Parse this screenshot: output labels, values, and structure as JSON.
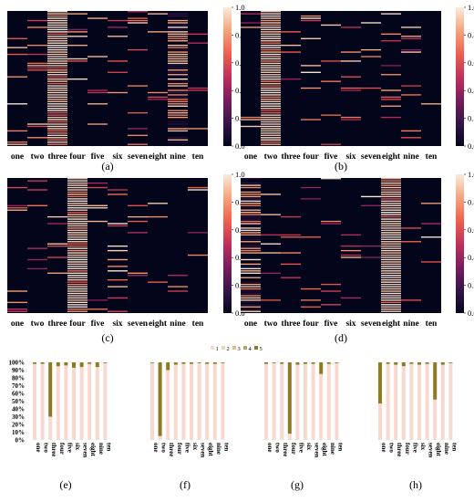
{
  "figure": {
    "colormap": [
      "#03051a",
      "#36154a",
      "#7a1d5e",
      "#c32f5a",
      "#f0604d",
      "#f6a47b",
      "#faebdd"
    ],
    "heatmap_colorbar_ticks": [
      "0.0",
      "0.2",
      "0.4",
      "0.6",
      "0.8",
      "1.0"
    ],
    "stack_legend": [
      "1",
      "2",
      "3",
      "4",
      "5"
    ],
    "stack_colors": [
      "#f7d9d2",
      "#ead4b8",
      "#d8c58c",
      "#b8a55a",
      "#8f7a22"
    ],
    "stack_yticks": [
      "0%",
      "10%",
      "20%",
      "30%",
      "40%",
      "50%",
      "60%",
      "70%",
      "80%",
      "90%",
      "100%"
    ]
  },
  "chart_data": [
    {
      "type": "heatmap",
      "panel": "(a)",
      "categories": [
        "one",
        "two",
        "three",
        "four",
        "five",
        "six",
        "seven",
        "eight",
        "nine",
        "ten"
      ],
      "column_intensity": [
        0.1,
        0.12,
        0.95,
        0.12,
        0.12,
        0.15,
        0.12,
        0.12,
        0.55,
        0.08
      ],
      "colorbar_range": [
        0.0,
        1.0
      ]
    },
    {
      "type": "heatmap",
      "panel": "(b)",
      "categories": [
        "one",
        "two",
        "three",
        "four",
        "five",
        "six",
        "seven",
        "eight",
        "nine",
        "ten"
      ],
      "column_intensity": [
        0.12,
        1.0,
        0.06,
        0.08,
        0.08,
        0.14,
        0.06,
        0.14,
        0.1,
        0.06
      ],
      "colorbar_range": [
        0.0,
        1.0
      ]
    },
    {
      "type": "heatmap",
      "panel": "(c)",
      "categories": [
        "one",
        "two",
        "three",
        "four",
        "five",
        "six",
        "seven",
        "eight",
        "nine",
        "ten"
      ],
      "column_intensity": [
        0.12,
        0.1,
        0.08,
        1.0,
        0.14,
        0.16,
        0.12,
        0.1,
        0.08,
        0.08
      ],
      "colorbar_range": [
        0.0,
        1.0
      ]
    },
    {
      "type": "heatmap",
      "panel": "(d)",
      "categories": [
        "one",
        "two",
        "three",
        "four",
        "five",
        "six",
        "seven",
        "eight",
        "nine",
        "ten"
      ],
      "column_intensity": [
        0.7,
        0.1,
        0.12,
        0.1,
        0.08,
        0.12,
        0.1,
        0.95,
        0.1,
        0.08
      ],
      "colorbar_range": [
        0.0,
        1.0
      ]
    },
    {
      "type": "bar",
      "panel": "(e)",
      "categories": [
        "one",
        "two",
        "three",
        "four",
        "five",
        "six",
        "seven",
        "eight",
        "nine",
        "ten"
      ],
      "series": [
        {
          "name": "1",
          "values": [
            98,
            98,
            30,
            95,
            96,
            93,
            94,
            98,
            94,
            99
          ]
        },
        {
          "name": "5",
          "values": [
            2,
            2,
            70,
            5,
            4,
            7,
            6,
            2,
            6,
            1
          ]
        }
      ],
      "ylim": [
        0,
        100
      ]
    },
    {
      "type": "bar",
      "panel": "(f)",
      "categories": [
        "one",
        "two",
        "three",
        "four",
        "five",
        "six",
        "seven",
        "eight",
        "nine",
        "ten"
      ],
      "series": [
        {
          "name": "1",
          "values": [
            99,
            5,
            90,
            97,
            98,
            98,
            99,
            98,
            98,
            99
          ]
        },
        {
          "name": "5",
          "values": [
            1,
            95,
            10,
            3,
            2,
            2,
            1,
            2,
            2,
            1
          ]
        }
      ],
      "ylim": [
        0,
        100
      ]
    },
    {
      "type": "bar",
      "panel": "(g)",
      "categories": [
        "one",
        "two",
        "three",
        "four",
        "five",
        "six",
        "seven",
        "eight",
        "nine",
        "ten"
      ],
      "series": [
        {
          "name": "1",
          "values": [
            98,
            99,
            98,
            8,
            97,
            98,
            98,
            85,
            98,
            99
          ]
        },
        {
          "name": "5",
          "values": [
            2,
            1,
            2,
            92,
            3,
            2,
            2,
            15,
            2,
            1
          ]
        }
      ],
      "ylim": [
        0,
        100
      ]
    },
    {
      "type": "bar",
      "panel": "(h)",
      "categories": [
        "one",
        "two",
        "three",
        "four",
        "five",
        "six",
        "seven",
        "eight",
        "nine",
        "ten"
      ],
      "series": [
        {
          "name": "1",
          "values": [
            47,
            98,
            97,
            95,
            98,
            97,
            98,
            52,
            97,
            99
          ]
        },
        {
          "name": "5",
          "values": [
            53,
            2,
            3,
            5,
            2,
            3,
            2,
            48,
            3,
            1
          ]
        }
      ],
      "ylim": [
        0,
        100
      ]
    }
  ]
}
